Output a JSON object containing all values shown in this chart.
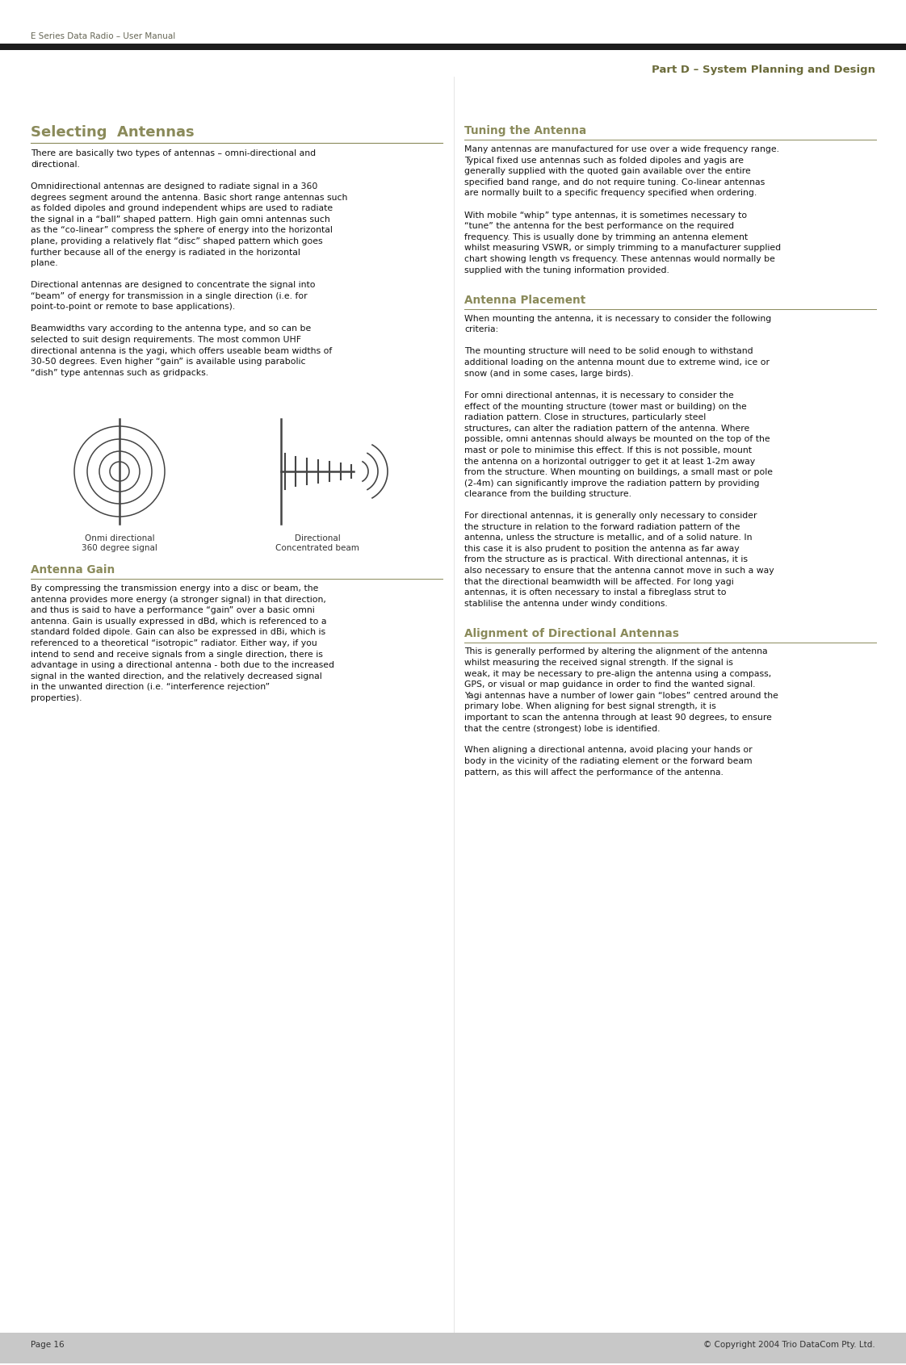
{
  "bg_color": "#ffffff",
  "header_left": "E Series Data Radio – User Manual",
  "header_right": "Part D – System Planning and Design",
  "header_left_color": "#666655",
  "header_right_color": "#6b6b3a",
  "footer_left": "Page 16",
  "footer_right": "© Copyright 2004 Trio DataCom Pty. Ltd.",
  "footer_bg": "#c8c8c8",
  "section1_title": "Selecting  Antennas",
  "section2_title": "Antenna Gain",
  "section3_title": "Tuning the Antenna",
  "section4_title": "Antenna Placement",
  "section5_title": "Alignment of Directional Antennas",
  "title_color": "#8a8a5a",
  "body_color": "#111111",
  "omni_label": "Onmi directional\n360 degree signal",
  "dir_label": "Directional\nConcentrated beam",
  "s1p1": "There are basically two types of antennas – omni-directional and directional.",
  "s1p2": "Omnidirectional antennas are designed to radiate signal in a 360 degrees segment around the antenna. Basic short range antennas such as folded dipoles and ground independent whips are used to radiate the signal in a “ball” shaped pattern. High gain omni antennas such as the “co-linear” compress the sphere of energy into the horizontal plane, providing a relatively flat “disc” shaped pattern which goes further because all of the energy is radiated in the horizontal plane.",
  "s1p3": "Directional antennas are designed to concentrate the signal into “beam” of energy for transmission in a single direction (i.e. for point-to-point or remote to base applications).",
  "s1p4": "Beamwidths vary according to the antenna type, and so can be selected to suit design requirements. The most common UHF directional antenna is the yagi, which offers useable beam widths of 30-50 degrees. Even higher “gain” is available using parabolic “dish” type antennas such as gridpacks.",
  "s2p1": "By compressing the transmission energy into a disc or beam, the antenna provides more energy (a stronger signal) in that direction, and thus is said to have a performance “gain” over a basic omni antenna. Gain is usually expressed in dBd, which is referenced to a standard folded dipole. Gain can also be expressed in dBi, which is referenced to a theoretical “isotropic” radiator. Either way, if you intend to send and receive signals from a single direction, there is advantage in using a directional antenna - both due to the increased signal in the wanted direction, and the relatively decreased signal in the unwanted direction (i.e. “interference rejection” properties).",
  "s3p1": "Many antennas are manufactured for use over a wide frequency range. Typical fixed use antennas such as folded dipoles and yagis are generally supplied with the quoted gain available over the entire specified band range, and do not require tuning. Co-linear antennas are normally built to a specific frequency specified when ordering.",
  "s3p2": "With mobile “whip” type antennas, it is sometimes necessary to “tune” the antenna for the best performance on the required frequency. This is usually done by trimming an antenna element whilst measuring VSWR, or simply trimming to a manufacturer supplied chart showing length vs frequency. These antennas would normally be supplied with the tuning information provided.",
  "s4p1": "When mounting the antenna, it is necessary to consider the following criteria:",
  "s4p2": "The mounting structure will need to be solid enough to withstand additional loading on the antenna mount due to extreme wind, ice or snow (and in some cases, large birds).",
  "s4p3": "For omni directional antennas, it is necessary to consider the effect of the mounting structure (tower mast or building) on the radiation pattern. Close in structures, particularly steel structures, can alter the radiation pattern of the antenna. Where possible, omni antennas should always be mounted on the top of the mast or pole to minimise this effect.  If this is not possible, mount the antenna on a horizontal outrigger to get it at least 1-2m away from the structure. When mounting on buildings, a small mast or pole (2-4m) can significantly improve the radiation pattern by providing clearance from the building structure.",
  "s4p4": "For directional antennas, it is generally only necessary to consider the structure in relation to the forward radiation pattern of the antenna, unless the structure is metallic, and of a solid nature. In this case it is also prudent to position the antenna as far away from the structure as is practical. With directional antennas, it is also necessary to ensure that the antenna cannot move in such a way that the directional beamwidth will be affected. For long yagi antennas, it is often necessary to instal a fibreglass strut to stablilise the antenna under windy conditions.",
  "s5p1": "This is generally performed by altering the alignment of the antenna whilst measuring the received signal strength. If the signal is weak, it may be necessary to pre-align the antenna using a compass, GPS, or visual or map guidance in order to find the wanted signal. Yagi antennas have a number of lower gain “lobes” centred around the primary lobe. When aligning for best signal strength, it is important to scan the antenna through at least 90 degrees, to ensure that the centre (strongest) lobe is identified.",
  "s5p2": "When aligning a directional antenna, avoid placing your hands or body in the vicinity of the radiating element or the forward beam pattern, as this will affect the performance of the antenna."
}
